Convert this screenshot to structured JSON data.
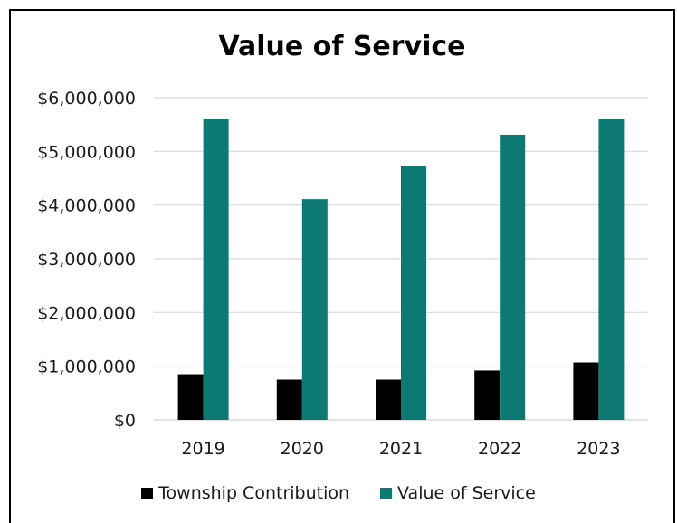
{
  "chart_data": {
    "type": "bar",
    "title": "Value of Service",
    "xlabel": "",
    "ylabel": "",
    "categories": [
      "2019",
      "2020",
      "2021",
      "2022",
      "2023"
    ],
    "series": [
      {
        "name": "Township Contribution",
        "color": "#000000",
        "values": [
          850000,
          750000,
          750000,
          920000,
          1070000
        ]
      },
      {
        "name": "Value of Service",
        "color": "#0c7a72",
        "values": [
          5600000,
          4110000,
          4730000,
          5310000,
          5600000
        ]
      }
    ],
    "ylim": [
      0,
      6000000
    ],
    "yticks": [
      "$0",
      "$1,000,000",
      "$2,000,000",
      "$3,000,000",
      "$4,000,000",
      "$5,000,000",
      "$6,000,000"
    ],
    "grid": true,
    "gridline_color": "#d9d9d9",
    "legend_position": "bottom"
  }
}
